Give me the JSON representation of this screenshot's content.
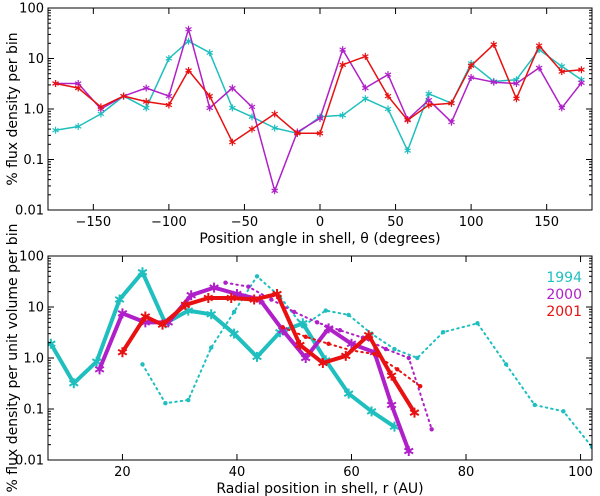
{
  "colors": {
    "1994": "#1fbfbf",
    "2000": "#b020c8",
    "2001": "#e81010"
  },
  "chart_data": [
    {
      "type": "line",
      "yscale": "log",
      "xlabel": "Position angle in shell, θ (degrees)",
      "ylabel": "% flux density per bin",
      "xlim": [
        -180,
        180
      ],
      "ylim": [
        0.01,
        100
      ],
      "xticks": [
        -150,
        -100,
        -50,
        0,
        50,
        100,
        150
      ],
      "xtick_labels": [
        "−150",
        "−100",
        "−50",
        "0",
        "50",
        "100",
        "150"
      ],
      "yticks": [
        0.01,
        0.1,
        1,
        10,
        100
      ],
      "ytick_labels": [
        "0.01",
        "0.1",
        "1.0",
        "10",
        "100"
      ],
      "series": [
        {
          "name": "1994",
          "color_key": "1994",
          "x": [
            -175,
            -160,
            -145,
            -130,
            -115,
            -100,
            -87,
            -73,
            -58,
            -45,
            -30,
            -15,
            0,
            15,
            30,
            45,
            58,
            72,
            87,
            100,
            115,
            130,
            145,
            160,
            173
          ],
          "y": [
            0.38,
            0.45,
            0.8,
            1.8,
            1.05,
            10,
            22,
            13,
            1.05,
            0.7,
            0.42,
            0.33,
            0.7,
            0.75,
            1.6,
            1.0,
            0.15,
            2.0,
            1.3,
            8,
            3.5,
            3.8,
            15,
            7,
            3.8
          ]
        },
        {
          "name": "2000",
          "color_key": "2000",
          "x": [
            -175,
            -160,
            -145,
            -130,
            -115,
            -100,
            -87,
            -73,
            -58,
            -45,
            -30,
            -15,
            0,
            15,
            30,
            45,
            58,
            72,
            87,
            100,
            115,
            130,
            145,
            160,
            173
          ],
          "y": [
            3.2,
            3.2,
            1.0,
            1.8,
            2.6,
            1.8,
            38,
            1.05,
            2.6,
            1.1,
            0.024,
            0.35,
            0.65,
            15,
            2.6,
            4.8,
            0.62,
            1.5,
            0.55,
            4.2,
            3.4,
            3.2,
            6.5,
            1.05,
            3.3
          ]
        },
        {
          "name": "2001",
          "color_key": "2001",
          "x": [
            -175,
            -160,
            -145,
            -130,
            -115,
            -100,
            -87,
            -73,
            -58,
            -45,
            -30,
            -15,
            0,
            15,
            30,
            45,
            58,
            72,
            87,
            100,
            115,
            130,
            145,
            160,
            173
          ],
          "y": [
            3.2,
            2.6,
            1.1,
            1.8,
            1.4,
            1.2,
            5.8,
            1.8,
            0.22,
            0.4,
            0.8,
            0.33,
            0.33,
            7.5,
            11,
            1.8,
            0.6,
            1.2,
            1.3,
            7.2,
            19,
            1.6,
            18,
            5.5,
            6
          ]
        }
      ]
    },
    {
      "type": "line",
      "yscale": "log",
      "xlabel": "Radial position in shell, r (AU)",
      "ylabel": "% flux density per unit volume per bin",
      "xlim": [
        7,
        102
      ],
      "ylim": [
        0.01,
        100
      ],
      "xticks": [
        20,
        40,
        60,
        80,
        100
      ],
      "xtick_labels": [
        "20",
        "40",
        "60",
        "80",
        "100"
      ],
      "yticks": [
        0.01,
        0.1,
        1,
        10,
        100
      ],
      "ytick_labels": [
        "0.01",
        "0.1",
        "1.0",
        "10",
        "100"
      ],
      "legend": {
        "position": "top-right",
        "entries": [
          "1994",
          "2000",
          "2001"
        ]
      },
      "series": [
        {
          "name": "1994 (solid)",
          "color_key": "1994",
          "style": "solid",
          "width": 4,
          "x": [
            7.5,
            11.5,
            15.5,
            19.5,
            23.5,
            27.5,
            31.5,
            35.5,
            39.5,
            43.5,
            47.5,
            51.5,
            55.5,
            59.5,
            63.5,
            67.5
          ],
          "y": [
            1.9,
            0.32,
            0.85,
            14,
            48,
            4.8,
            8.5,
            7.2,
            3.0,
            1.05,
            3.2,
            4.8,
            0.9,
            0.2,
            0.09,
            0.045
          ]
        },
        {
          "name": "1994 (dotted)",
          "color_key": "1994",
          "style": "dotted",
          "width": 2,
          "x": [
            23.5,
            27.5,
            31.5,
            35.5,
            39.5,
            43.5,
            47.5,
            51.5,
            55.5,
            59.5,
            63.5,
            67.5,
            71.5,
            76,
            82,
            87,
            92,
            97,
            102
          ],
          "y": [
            0.75,
            0.13,
            0.15,
            1.6,
            8,
            40,
            16,
            4.2,
            8.5,
            7,
            3,
            1.5,
            1.0,
            3.2,
            4.8,
            0.75,
            0.12,
            0.09,
            0.018
          ]
        },
        {
          "name": "2000 (solid)",
          "color_key": "2000",
          "style": "solid",
          "width": 4,
          "x": [
            16,
            20,
            24,
            28,
            32,
            36,
            40,
            44,
            48,
            52,
            56,
            60,
            64,
            67,
            70
          ],
          "y": [
            0.6,
            7.5,
            5,
            5,
            17,
            24,
            18,
            14,
            3.5,
            1.0,
            3.8,
            1.9,
            1.3,
            0.12,
            0.015
          ]
        },
        {
          "name": "2000 (dotted)",
          "color_key": "2000",
          "style": "dotted",
          "width": 2,
          "x": [
            38,
            42,
            46,
            50,
            54,
            58,
            62,
            66,
            70,
            74
          ],
          "y": [
            30,
            25,
            14,
            8,
            5,
            3.5,
            2.5,
            1.5,
            1.0,
            0.04
          ]
        },
        {
          "name": "2001 (solid)",
          "color_key": "2001",
          "style": "solid",
          "width": 4,
          "x": [
            20,
            24,
            27,
            31,
            35,
            39,
            43,
            47,
            51,
            55,
            59,
            63,
            67,
            71
          ],
          "y": [
            1.3,
            6.5,
            4.5,
            11,
            15,
            15,
            14,
            18,
            1.8,
            0.8,
            1.1,
            2.8,
            0.45,
            0.085
          ]
        },
        {
          "name": "2001 (dotted)",
          "color_key": "2001",
          "style": "dotted",
          "width": 2,
          "x": [
            48,
            52,
            56,
            60,
            64,
            68,
            72
          ],
          "y": [
            4,
            2.6,
            1.9,
            1.4,
            1.2,
            0.6,
            0.28
          ]
        }
      ]
    }
  ]
}
